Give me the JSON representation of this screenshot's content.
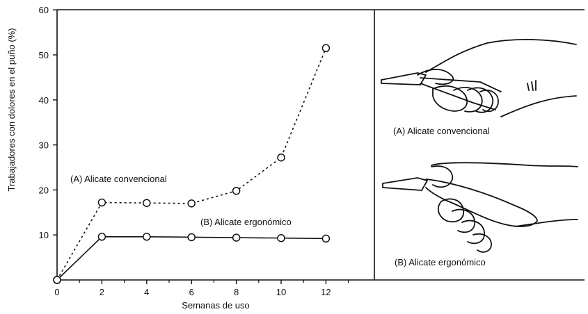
{
  "chart_data": {
    "type": "line",
    "xlabel": "Semanas de uso",
    "ylabel": "Trabajadores con dolores en el puño (%)",
    "xlim": [
      0,
      14
    ],
    "ylim": [
      0,
      60
    ],
    "xticks": [
      0,
      2,
      4,
      6,
      8,
      10,
      12
    ],
    "yticks": [
      10,
      20,
      30,
      40,
      50,
      60
    ],
    "grid": false,
    "series": [
      {
        "name": "(A) Alicate convencional",
        "line_style": "dotted",
        "x": [
          0,
          2,
          4,
          6,
          8,
          10,
          12
        ],
        "y": [
          0,
          17.2,
          17.1,
          17,
          19.8,
          27.2,
          51.5
        ]
      },
      {
        "name": "(B) Alicate ergonómico",
        "line_style": "solid",
        "x": [
          0,
          2,
          4,
          6,
          8,
          10,
          12
        ],
        "y": [
          0,
          9.6,
          9.6,
          9.5,
          9.4,
          9.3,
          9.2
        ]
      }
    ]
  },
  "illustrations": {
    "top_caption": "(A) Alicate convencional",
    "bottom_caption": "(B) Alicate ergonómico"
  }
}
